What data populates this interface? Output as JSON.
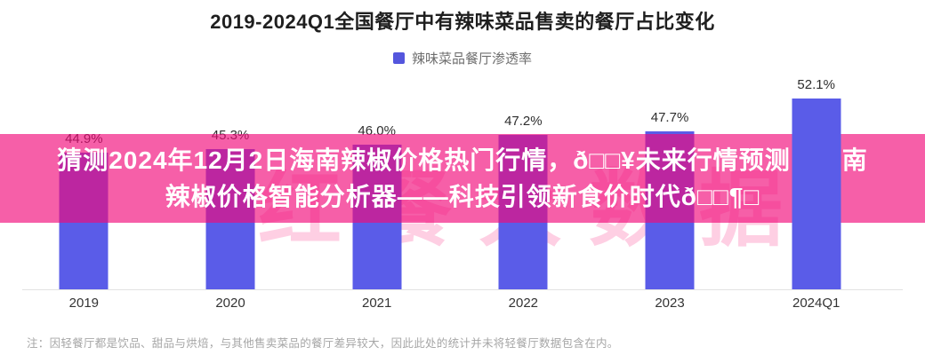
{
  "page": {
    "background_color": "#ffffff"
  },
  "chart": {
    "title": "2019-2024Q1全国餐厅中有辣味菜品售卖的餐厅占比变化",
    "legend": {
      "label": "辣味菜品餐厅渗透率",
      "swatch_color": "#5456dd"
    },
    "accent_color": "#5a5ce8",
    "note": "注：因轻餐厅都是饮品、甜品与烘焙，与其他售卖菜品的餐厅差异较大，因此此处的统计并未将轻餐厅数据包含在内。"
  },
  "chart_data": {
    "type": "bar",
    "title": "2019-2024Q1全国餐厅中有辣味菜品售卖的餐厅占比变化",
    "series_name": "辣味菜品餐厅渗透率",
    "categories": [
      "2019",
      "2020",
      "2021",
      "2022",
      "2023",
      "2024Q1"
    ],
    "values": [
      44.9,
      45.3,
      46.0,
      47.2,
      47.7,
      52.1
    ],
    "value_labels": [
      "44.9%",
      "45.3%",
      "46.0%",
      "47.2%",
      "47.7%",
      "52.1%"
    ],
    "xlabel": "",
    "ylabel": "",
    "grid": false,
    "legend_position": "top-center",
    "axis_truncated": true,
    "highlight_front_bar_index": 5
  },
  "overlay_banner": {
    "line1": "猜测2024年12月2日海南辣椒价格热门行情，ð□□¥未来行情预测，海南",
    "line2": "辣椒价格智能分析器——科技引领新食价时代ð□□¶□",
    "background_color": "#f10979",
    "background_opacity": 0.65,
    "text_color": "#ffffff"
  },
  "watermark": {
    "text": "红餐大数据"
  }
}
